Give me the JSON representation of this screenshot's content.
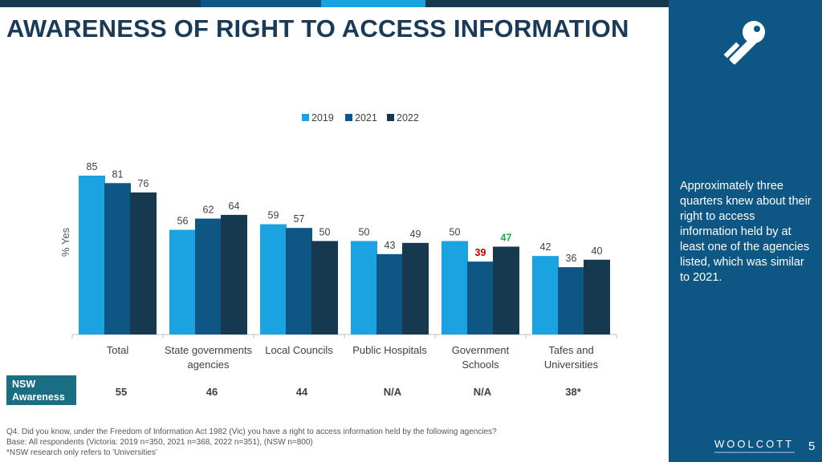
{
  "title": "AWARENESS OF RIGHT TO ACCESS INFORMATION",
  "colors": {
    "series_2019": "#1aa3e0",
    "series_2021": "#0e5784",
    "series_2022": "#17394f",
    "sidebar": "#0e5784",
    "nsw_label_bg": "#1a6e84",
    "down_label": "#c00000",
    "up_label": "#1aab48"
  },
  "chart_data": {
    "type": "bar",
    "ylabel": "% Yes",
    "xlabel": "",
    "ylim": [
      0,
      100
    ],
    "grid": false,
    "legend_position": "top-center",
    "categories": [
      [
        "Total"
      ],
      [
        "State governments",
        "agencies"
      ],
      [
        "Local Councils"
      ],
      [
        "Public Hospitals"
      ],
      [
        "Government",
        "Schools"
      ],
      [
        "Tafes and",
        "Universities"
      ]
    ],
    "series": [
      {
        "name": "2019",
        "values": [
          85,
          56,
          59,
          50,
          50,
          42
        ]
      },
      {
        "name": "2021",
        "values": [
          81,
          62,
          57,
          43,
          39,
          36
        ]
      },
      {
        "name": "2022",
        "values": [
          76,
          64,
          50,
          49,
          47,
          40
        ]
      }
    ],
    "highlights": [
      {
        "series": "2021",
        "category_index": 4,
        "direction": "down"
      },
      {
        "series": "2022",
        "category_index": 4,
        "direction": "up"
      }
    ]
  },
  "nsw": {
    "label_line1": "NSW",
    "label_line2": "Awareness",
    "values": [
      "55",
      "46",
      "44",
      "N/A",
      "N/A",
      "38*"
    ]
  },
  "sidebar": {
    "icon": "key-icon",
    "text": "Approximately three quarters knew about their right to access information held by at least one of the agencies listed, which was similar to 2021.",
    "logo": "WOOLCOTT",
    "page_number": "5"
  },
  "footnotes": [
    "Q4. Did you know, under the Freedom of Information Act 1982 (Vic) you have a right to access information held by the following agencies?",
    "Base: All respondents (Victoria: 2019 n=350, 2021 n=368, 2022 n=351), (NSW n=800)",
    "*NSW research only refers to 'Universities'"
  ]
}
